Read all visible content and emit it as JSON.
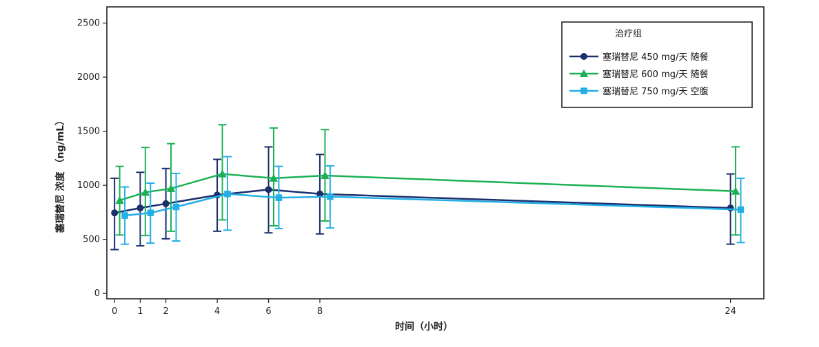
{
  "chart_data": {
    "type": "line",
    "xlabel": "时间（小时）",
    "ylabel": "塞瑞替尼 浓度 （ng/mL）",
    "xlim": [
      -0.3,
      25.3
    ],
    "ylim": [
      -50,
      2650
    ],
    "xticks": [
      0,
      1,
      2,
      4,
      6,
      8,
      24
    ],
    "yticks": [
      0,
      500,
      1000,
      1500,
      2000,
      2500
    ],
    "grid": false,
    "legend": {
      "title": "治疗组",
      "position": "top-right"
    },
    "series": [
      {
        "name": "塞瑞替尼 450 mg/天 随餐",
        "color": "#1b2f6e",
        "marker": "circle",
        "offset": 0,
        "x": [
          0,
          1,
          2,
          4,
          6,
          8,
          24
        ],
        "y": [
          745,
          790,
          830,
          910,
          960,
          920,
          790
        ],
        "err_low": [
          405,
          440,
          505,
          575,
          560,
          550,
          455
        ],
        "err_high": [
          1065,
          1120,
          1155,
          1240,
          1355,
          1285,
          1105
        ]
      },
      {
        "name": "塞瑞替尼 600 mg/天 随餐",
        "color": "#1bb153",
        "marker": "triangle",
        "offset": 0.2,
        "x": [
          0,
          1,
          2,
          4,
          6,
          8,
          24
        ],
        "y": [
          860,
          935,
          970,
          1105,
          1065,
          1090,
          945
        ],
        "err_low": [
          540,
          535,
          575,
          680,
          625,
          670,
          540
        ],
        "err_high": [
          1175,
          1350,
          1385,
          1560,
          1530,
          1515,
          1355
        ]
      },
      {
        "name": "塞瑞替尼 750 mg/天 空腹",
        "color": "#22aee6",
        "marker": "square",
        "offset": 0.4,
        "x": [
          0,
          1,
          2,
          4,
          6,
          8,
          24
        ],
        "y": [
          720,
          745,
          800,
          920,
          885,
          895,
          775
        ],
        "err_low": [
          455,
          465,
          485,
          585,
          600,
          605,
          470
        ],
        "err_high": [
          985,
          1020,
          1110,
          1265,
          1175,
          1180,
          1065
        ]
      }
    ]
  }
}
